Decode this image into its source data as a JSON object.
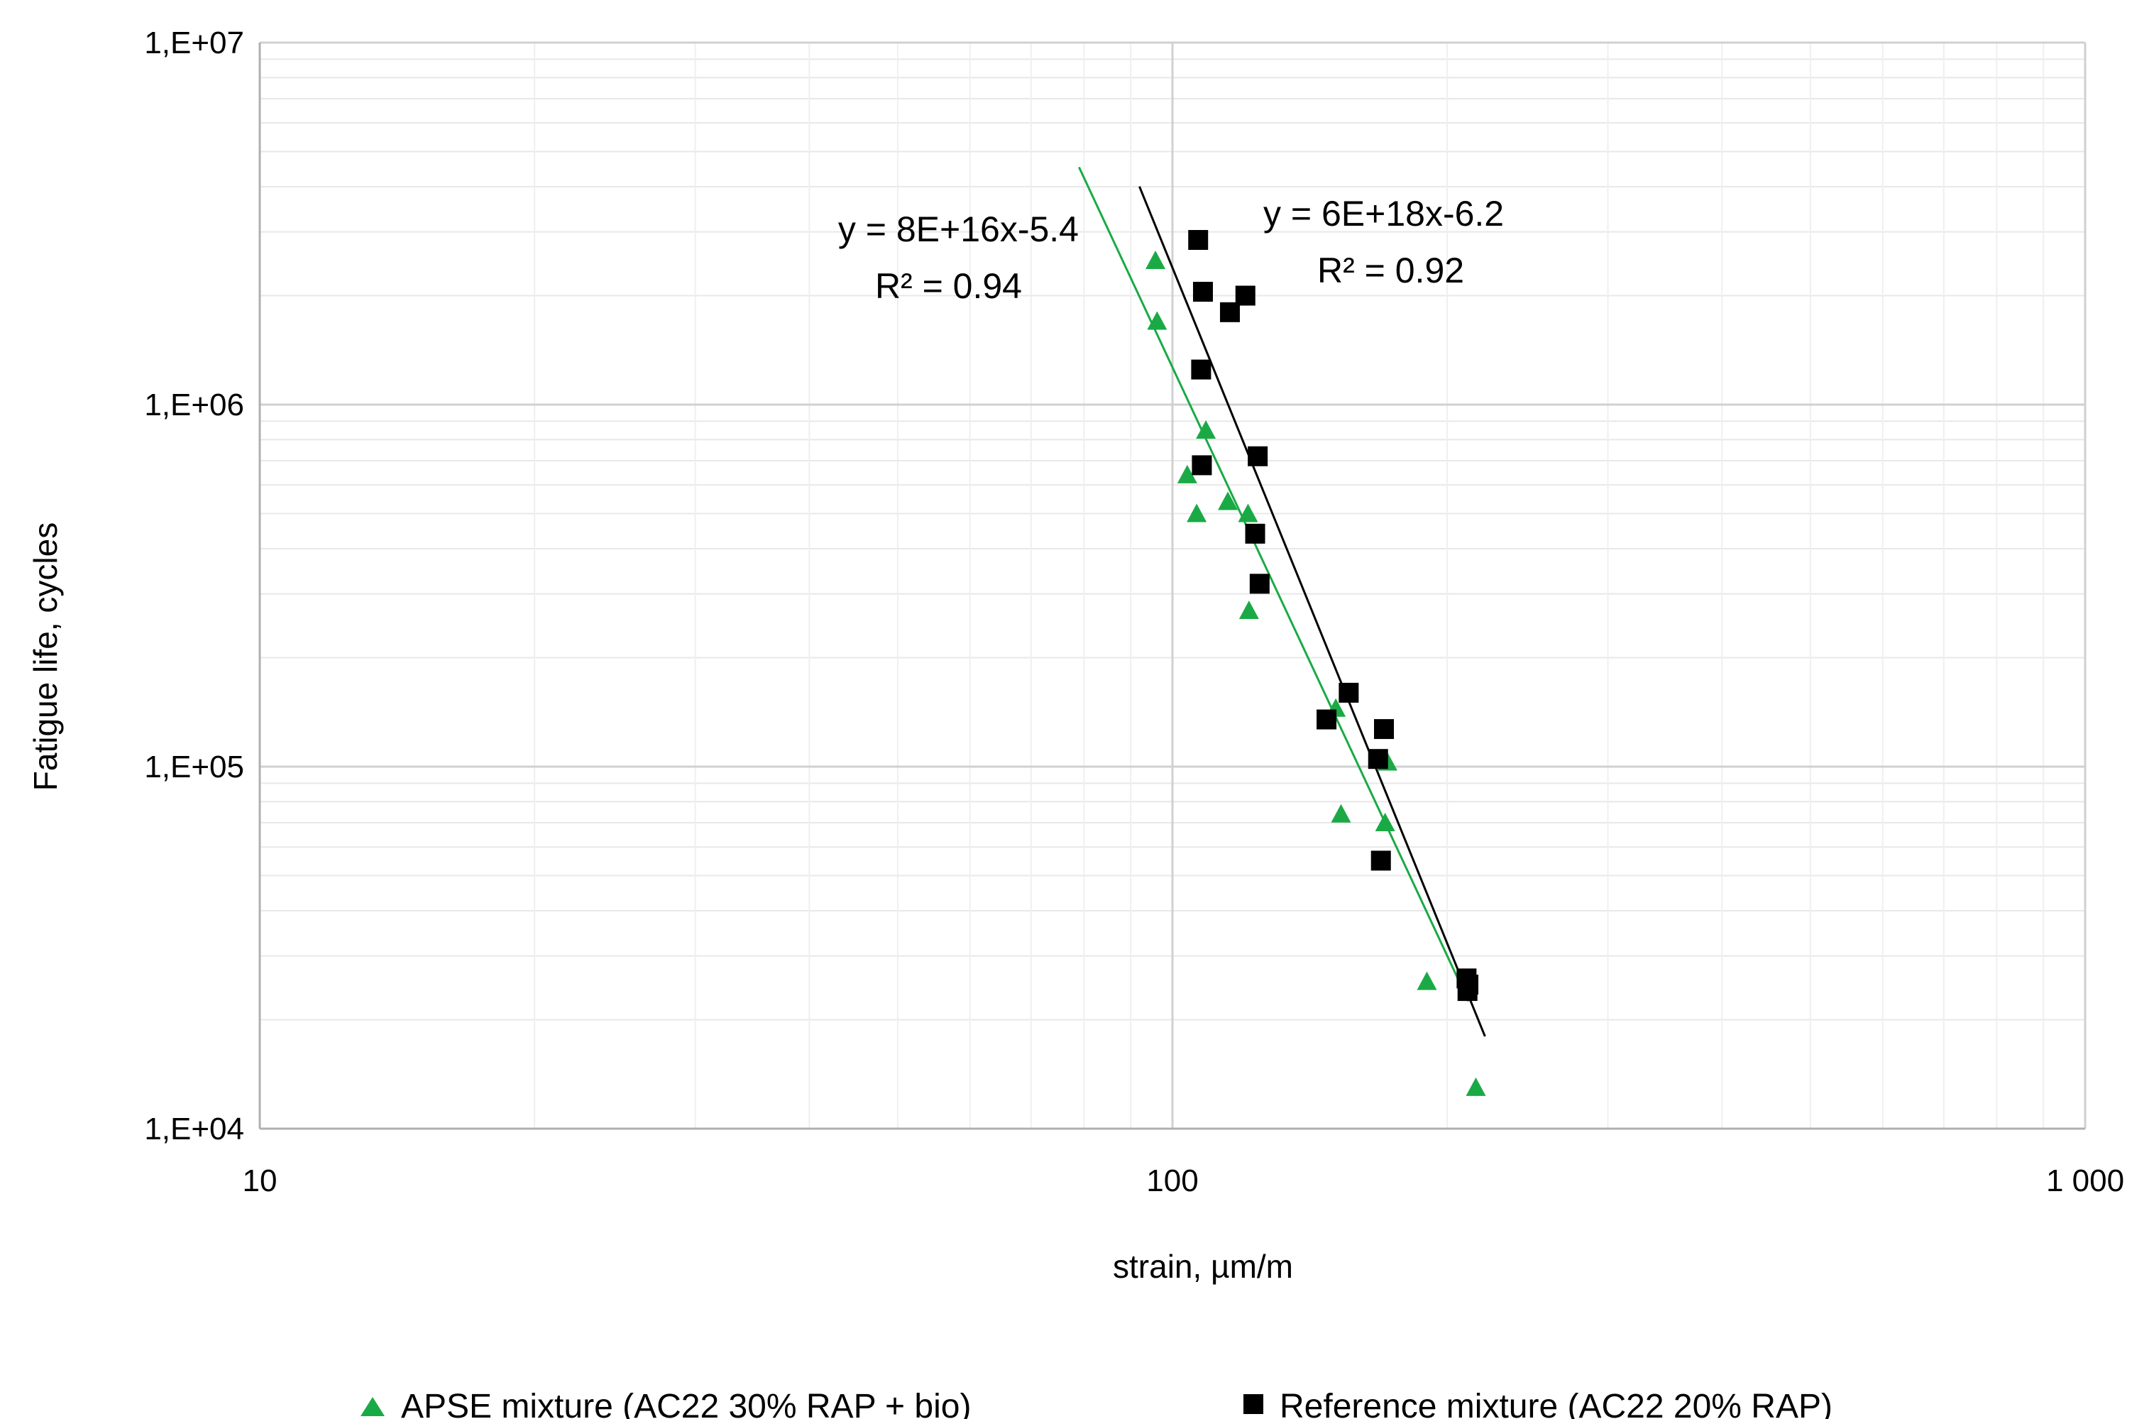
{
  "chart_data": {
    "type": "scatter",
    "x_scale": "log",
    "y_scale": "log",
    "xlim": [
      10,
      1000
    ],
    "ylim": [
      10000,
      10000000
    ],
    "xlabel": "strain, µm/m",
    "ylabel": "Fatigue life, cycles",
    "x_ticks": [
      {
        "value": 10,
        "label": "10"
      },
      {
        "value": 100,
        "label": "100"
      },
      {
        "value": 1000,
        "label": "1 000"
      }
    ],
    "y_ticks": [
      {
        "value": 10000,
        "label": "1,E+04"
      },
      {
        "value": 100000,
        "label": "1,E+05"
      },
      {
        "value": 1000000,
        "label": "1,E+06"
      },
      {
        "value": 10000000,
        "label": "1,E+07"
      }
    ],
    "grid": "major and minor, both axes",
    "legend_position": "bottom",
    "series": [
      {
        "name": "APSE mixture (AC22 30% RAP + bio)",
        "marker": "triangle",
        "color": "#1aaa45",
        "trend": {
          "coefficient": 8e+16,
          "exponent": -5.4,
          "x_range": [
            79,
            211
          ],
          "equation": "y = 8E+16x-5.4",
          "r2": "R² = 0.94"
        },
        "points": [
          [
            95.8,
            2500000
          ],
          [
            96.2,
            1700000
          ],
          [
            106.3,
            500000
          ],
          [
            103.8,
            640000
          ],
          [
            108.8,
            850000
          ],
          [
            115.0,
            540000
          ],
          [
            121.3,
            270000
          ],
          [
            121.0,
            500000
          ],
          [
            151.0,
            145000
          ],
          [
            153.0,
            74000
          ],
          [
            172.0,
            103000
          ],
          [
            171.0,
            70000
          ],
          [
            190.0,
            25500
          ],
          [
            215.0,
            13000
          ]
        ]
      },
      {
        "name": "Reference mixture (AC22 20% RAP)",
        "marker": "square",
        "color": "#000000",
        "trend": {
          "coefficient": 6e+18,
          "exponent": -6.2,
          "x_range": [
            92,
            220
          ],
          "equation": "y = 6E+18x-6.2",
          "r2": "R² = 0.92"
        },
        "points": [
          [
            106.7,
            2850000
          ],
          [
            108.0,
            2050000
          ],
          [
            115.6,
            1800000
          ],
          [
            120.2,
            2000000
          ],
          [
            107.5,
            1250000
          ],
          [
            107.7,
            680000
          ],
          [
            124.0,
            720000
          ],
          [
            123.2,
            440000
          ],
          [
            124.6,
            320000
          ],
          [
            147.5,
            135000
          ],
          [
            156.0,
            160000
          ],
          [
            168.0,
            105000
          ],
          [
            170.5,
            127000
          ],
          [
            169.2,
            55000
          ],
          [
            210.0,
            26000
          ],
          [
            210.5,
            24000
          ],
          [
            211.0,
            25000
          ]
        ]
      }
    ]
  }
}
